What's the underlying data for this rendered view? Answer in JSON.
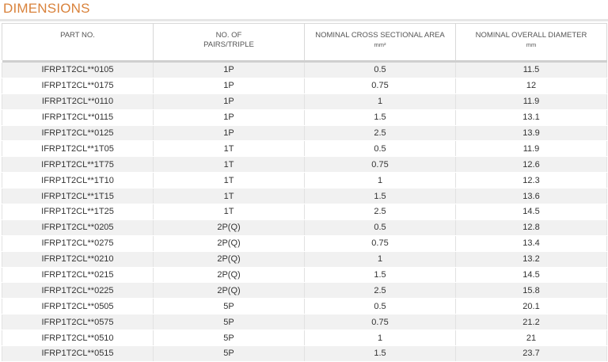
{
  "title": "DIMENSIONS",
  "headers": {
    "part_no": "PART NO.",
    "pairs_line1": "NO. OF",
    "pairs_line2": "PAIRS/TRIPLE",
    "area_line1": "NOMINAL CROSS SECTIONAL AREA",
    "area_unit": "mm²",
    "diam_line1": "NOMINAL OVERALL DIAMETER",
    "diam_unit": "mm"
  },
  "rows": [
    {
      "part": "IFRP1T2CL**0105",
      "pairs": "1P",
      "area": "0.5",
      "diameter": "11.5"
    },
    {
      "part": "IFRP1T2CL**0175",
      "pairs": "1P",
      "area": "0.75",
      "diameter": "12"
    },
    {
      "part": "IFRP1T2CL**0110",
      "pairs": "1P",
      "area": "1",
      "diameter": "11.9"
    },
    {
      "part": "IFRP1T2CL**0115",
      "pairs": "1P",
      "area": "1.5",
      "diameter": "13.1"
    },
    {
      "part": "IFRP1T2CL**0125",
      "pairs": "1P",
      "area": "2.5",
      "diameter": "13.9"
    },
    {
      "part": "IFRP1T2CL**1T05",
      "pairs": "1T",
      "area": "0.5",
      "diameter": "11.9"
    },
    {
      "part": "IFRP1T2CL**1T75",
      "pairs": "1T",
      "area": "0.75",
      "diameter": "12.6"
    },
    {
      "part": "IFRP1T2CL**1T10",
      "pairs": "1T",
      "area": "1",
      "diameter": "12.3"
    },
    {
      "part": "IFRP1T2CL**1T15",
      "pairs": "1T",
      "area": "1.5",
      "diameter": "13.6"
    },
    {
      "part": "IFRP1T2CL**1T25",
      "pairs": "1T",
      "area": "2.5",
      "diameter": "14.5"
    },
    {
      "part": "IFRP1T2CL**0205",
      "pairs": "2P(Q)",
      "area": "0.5",
      "diameter": "12.8"
    },
    {
      "part": "IFRP1T2CL**0275",
      "pairs": "2P(Q)",
      "area": "0.75",
      "diameter": "13.4"
    },
    {
      "part": "IFRP1T2CL**0210",
      "pairs": "2P(Q)",
      "area": "1",
      "diameter": "13.2"
    },
    {
      "part": "IFRP1T2CL**0215",
      "pairs": "2P(Q)",
      "area": "1.5",
      "diameter": "14.5"
    },
    {
      "part": "IFRP1T2CL**0225",
      "pairs": "2P(Q)",
      "area": "2.5",
      "diameter": "15.8"
    },
    {
      "part": "IFRP1T2CL**0505",
      "pairs": "5P",
      "area": "0.5",
      "diameter": "20.1"
    },
    {
      "part": "IFRP1T2CL**0575",
      "pairs": "5P",
      "area": "0.75",
      "diameter": "21.2"
    },
    {
      "part": "IFRP1T2CL**0510",
      "pairs": "5P",
      "area": "1",
      "diameter": "21"
    },
    {
      "part": "IFRP1T2CL**0515",
      "pairs": "5P",
      "area": "1.5",
      "diameter": "23.7"
    }
  ]
}
